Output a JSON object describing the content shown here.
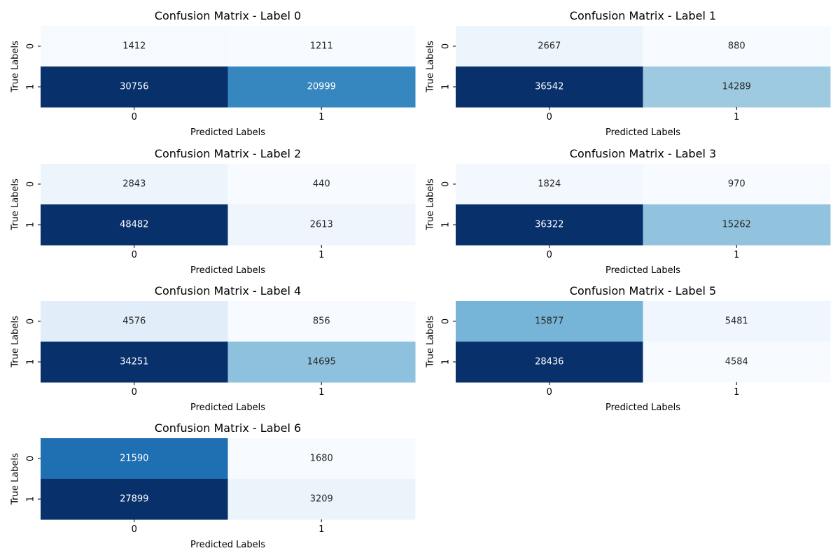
{
  "chart_data": [
    {
      "type": "heatmap",
      "title": "Confusion Matrix - Label 0",
      "xlabel": "Predicted Labels",
      "ylabel": "True Labels",
      "x_categories": [
        "0",
        "1"
      ],
      "y_categories": [
        "0",
        "1"
      ],
      "values": [
        [
          1412,
          1211
        ],
        [
          30756,
          20999
        ]
      ],
      "colormap": "Blues",
      "colorbar": false
    },
    {
      "type": "heatmap",
      "title": "Confusion Matrix - Label 1",
      "xlabel": "Predicted Labels",
      "ylabel": "True Labels",
      "x_categories": [
        "0",
        "1"
      ],
      "y_categories": [
        "0",
        "1"
      ],
      "values": [
        [
          2667,
          880
        ],
        [
          36542,
          14289
        ]
      ],
      "colormap": "Blues",
      "colorbar": false
    },
    {
      "type": "heatmap",
      "title": "Confusion Matrix - Label 2",
      "xlabel": "Predicted Labels",
      "ylabel": "True Labels",
      "x_categories": [
        "0",
        "1"
      ],
      "y_categories": [
        "0",
        "1"
      ],
      "values": [
        [
          2843,
          440
        ],
        [
          48482,
          2613
        ]
      ],
      "colormap": "Blues",
      "colorbar": false
    },
    {
      "type": "heatmap",
      "title": "Confusion Matrix - Label 3",
      "xlabel": "Predicted Labels",
      "ylabel": "True Labels",
      "x_categories": [
        "0",
        "1"
      ],
      "y_categories": [
        "0",
        "1"
      ],
      "values": [
        [
          1824,
          970
        ],
        [
          36322,
          15262
        ]
      ],
      "colormap": "Blues",
      "colorbar": false
    },
    {
      "type": "heatmap",
      "title": "Confusion Matrix - Label 4",
      "xlabel": "Predicted Labels",
      "ylabel": "True Labels",
      "x_categories": [
        "0",
        "1"
      ],
      "y_categories": [
        "0",
        "1"
      ],
      "values": [
        [
          4576,
          856
        ],
        [
          34251,
          14695
        ]
      ],
      "colormap": "Blues",
      "colorbar": false
    },
    {
      "type": "heatmap",
      "title": "Confusion Matrix - Label 5",
      "xlabel": "Predicted Labels",
      "ylabel": "True Labels",
      "x_categories": [
        "0",
        "1"
      ],
      "y_categories": [
        "0",
        "1"
      ],
      "values": [
        [
          15877,
          5481
        ],
        [
          28436,
          4584
        ]
      ],
      "colormap": "Blues",
      "colorbar": false
    },
    {
      "type": "heatmap",
      "title": "Confusion Matrix - Label 6",
      "xlabel": "Predicted Labels",
      "ylabel": "True Labels",
      "x_categories": [
        "0",
        "1"
      ],
      "y_categories": [
        "0",
        "1"
      ],
      "values": [
        [
          21590,
          1680
        ],
        [
          27899,
          3209
        ]
      ],
      "colormap": "Blues",
      "colorbar": false
    }
  ]
}
